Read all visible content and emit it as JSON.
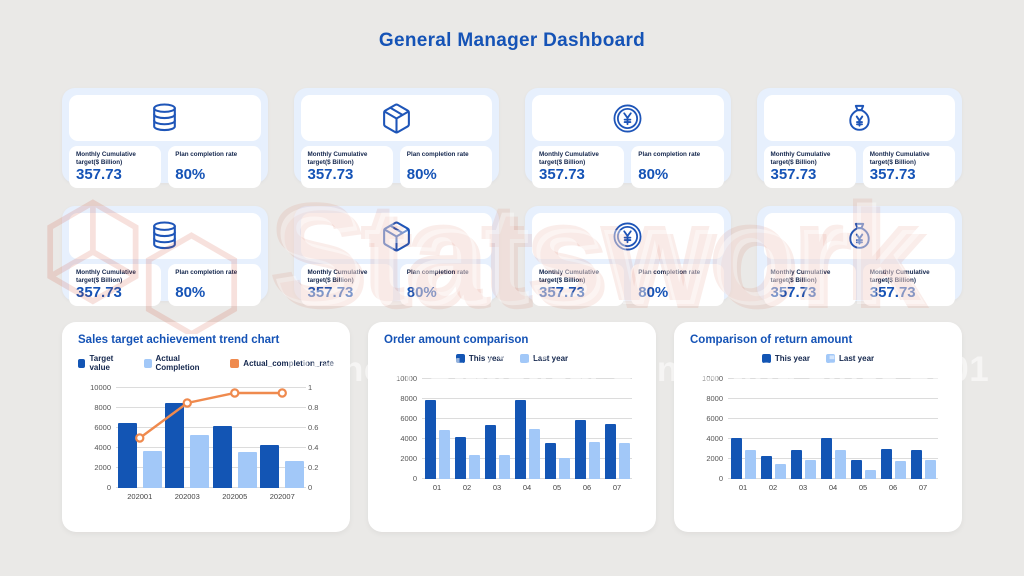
{
  "title": "General Manager Dashboard",
  "watermark": {
    "brand": "Statswork",
    "tagline": "Pioneer Statistical Consulting since 2001",
    "logo_color": "#cf4a30"
  },
  "colors": {
    "accent_blue": "#1553b6",
    "label_navy": "#13264d",
    "dark_bar": "#1355b4",
    "light_bar": "#a2c8f8",
    "orange_line": "#ef8a4e",
    "kpi_card_bg": "#e7f0fd",
    "icon_blue": "#1e55b8"
  },
  "kpi": {
    "rows": [
      {
        "cards": [
          {
            "icon": "database-icon",
            "stats": [
              {
                "label": "Monthly Cumulative target($ Billion)",
                "value": "357.73"
              },
              {
                "label": "Plan completion rate",
                "value": "80%"
              }
            ]
          },
          {
            "icon": "package-icon",
            "stats": [
              {
                "label": "Monthly Cumulative target($ Billion)",
                "value": "357.73"
              },
              {
                "label": "Plan completion rate",
                "value": "80%"
              }
            ]
          },
          {
            "icon": "yen-coin-icon",
            "stats": [
              {
                "label": "Monthly Cumulative target($ Billion)",
                "value": "357.73"
              },
              {
                "label": "Plan completion rate",
                "value": "80%"
              }
            ]
          },
          {
            "icon": "money-bag-icon",
            "stats": [
              {
                "label": "Monthly Cumulative target($ Billion)",
                "value": "357.73"
              },
              {
                "label": "Monthly Cumulative target($ Billion)",
                "value": "357.73"
              }
            ]
          }
        ]
      },
      {
        "cards": [
          {
            "icon": "database-icon",
            "stats": [
              {
                "label": "Monthly Cumulative target($ Billion)",
                "value": "357.73"
              },
              {
                "label": "Plan completion rate",
                "value": "80%"
              }
            ]
          },
          {
            "icon": "package-icon",
            "stats": [
              {
                "label": "Monthly Cumulative target($ Billion)",
                "value": "357.73"
              },
              {
                "label": "Plan completion rate",
                "value": "80%"
              }
            ]
          },
          {
            "icon": "yen-coin-icon",
            "stats": [
              {
                "label": "Monthly Cumulative target($ Billion)",
                "value": "357.73"
              },
              {
                "label": "Plan completion rate",
                "value": "80%"
              }
            ]
          },
          {
            "icon": "money-bag-icon",
            "stats": [
              {
                "label": "Monthly Cumulative target($ Billion)",
                "value": "357.73"
              },
              {
                "label": "Monthly Cumulative target($ Billion)",
                "value": "357.73"
              }
            ]
          }
        ]
      }
    ]
  },
  "chart_data": [
    {
      "type": "bar+line",
      "title": "Sales target achievement trend chart",
      "categories": [
        "202001",
        "202003",
        "202005",
        "202007"
      ],
      "series": [
        {
          "name": "Target value",
          "type": "bar",
          "color": "#1355b4",
          "values": [
            6500,
            8500,
            6250,
            4300
          ]
        },
        {
          "name": "Actual Completion",
          "type": "bar",
          "color": "#a2c8f8",
          "values": [
            3700,
            5300,
            3600,
            2700
          ]
        },
        {
          "name": "Actual_completion_rate",
          "type": "line",
          "color": "#ef8a4e",
          "axis": "right",
          "values": [
            0.5,
            0.85,
            0.95,
            0.95
          ]
        }
      ],
      "ylim": [
        0,
        10000
      ],
      "yticks": [
        0,
        2000,
        4000,
        6000,
        8000,
        10000
      ],
      "y2lim": [
        0,
        1
      ],
      "y2ticks": [
        0,
        0.2,
        0.4,
        0.6,
        0.8,
        1
      ],
      "grid": true,
      "legend_position": "top-left"
    },
    {
      "type": "bar",
      "title": "Order amount comparison",
      "categories": [
        "01",
        "02",
        "03",
        "04",
        "05",
        "06",
        "07"
      ],
      "series": [
        {
          "name": "This year",
          "type": "bar",
          "color": "#1355b4",
          "values": [
            7900,
            4200,
            5450,
            7900,
            3650,
            5900,
            5550
          ]
        },
        {
          "name": "Last year",
          "type": "bar",
          "color": "#a2c8f8",
          "values": [
            4900,
            2450,
            2450,
            5000,
            2100,
            3750,
            3600
          ]
        }
      ],
      "ylim": [
        0,
        10000
      ],
      "yticks": [
        0,
        2000,
        4000,
        6000,
        8000,
        10000
      ],
      "grid": true,
      "legend_position": "top-center"
    },
    {
      "type": "bar",
      "title": "Comparison of return amount",
      "categories": [
        "01",
        "02",
        "03",
        "04",
        "05",
        "06",
        "07"
      ],
      "series": [
        {
          "name": "This year",
          "type": "bar",
          "color": "#1355b4",
          "values": [
            4150,
            2300,
            2950,
            4150,
            1950,
            3050,
            2950
          ]
        },
        {
          "name": "Last year",
          "type": "bar",
          "color": "#a2c8f8",
          "values": [
            2950,
            1500,
            1950,
            2950,
            950,
            1800,
            1950
          ]
        }
      ],
      "ylim": [
        0,
        10000
      ],
      "yticks": [
        0,
        2000,
        4000,
        6000,
        8000,
        10000
      ],
      "grid": true,
      "legend_position": "top-center"
    }
  ]
}
